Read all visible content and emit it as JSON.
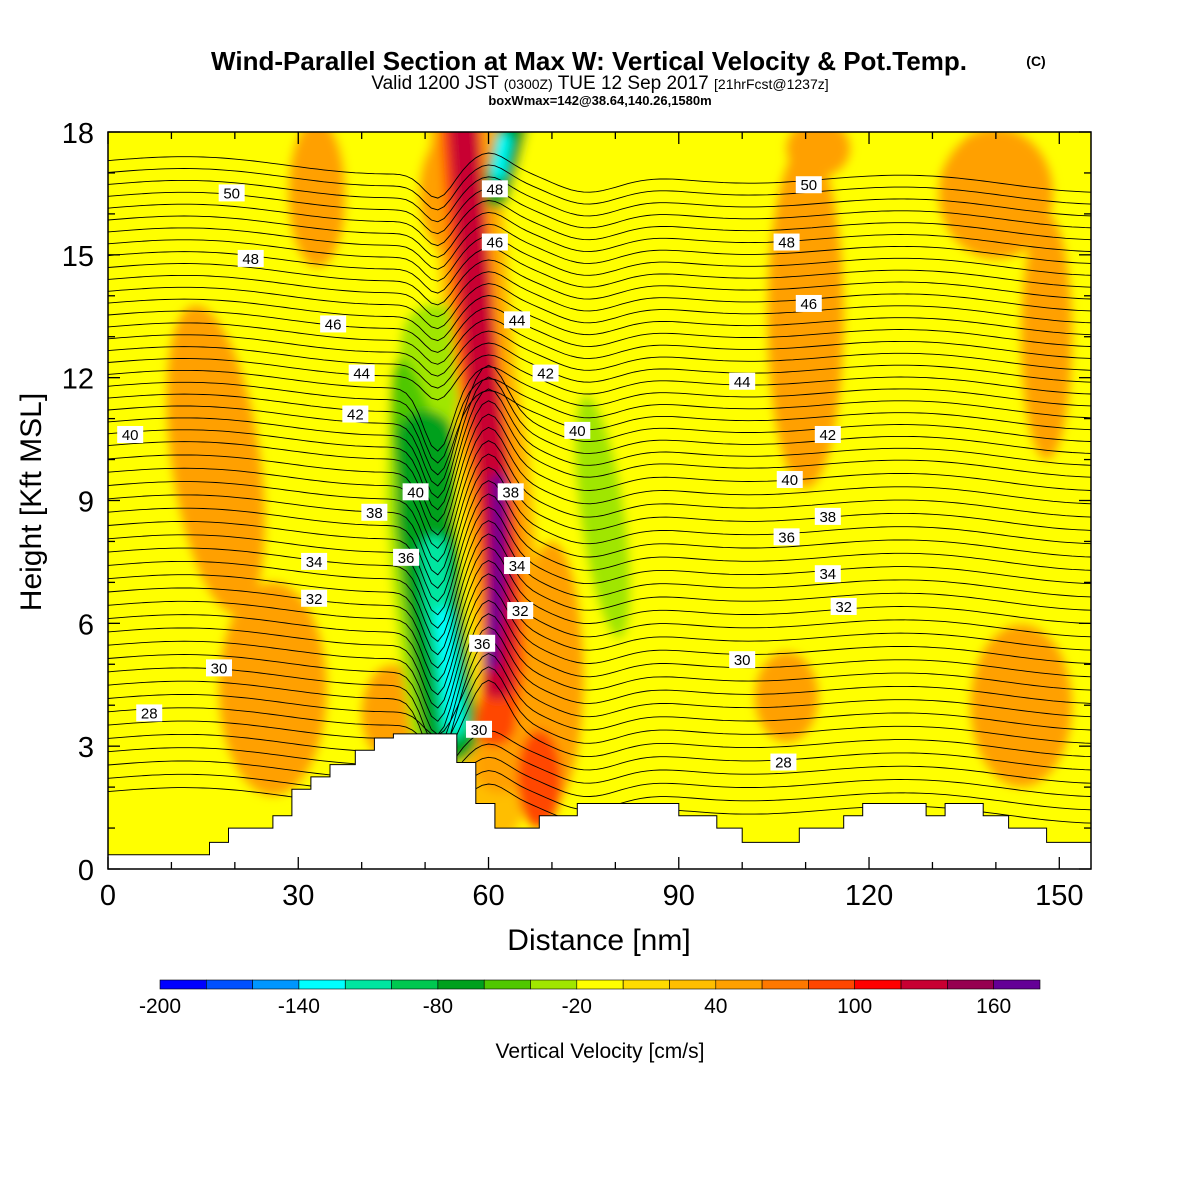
{
  "chart_data": {
    "type": "heatmap",
    "title": "Wind-Parallel Section at Max W: Vertical Velocity & Pot.Temp.",
    "title_mark": "(C)",
    "subtitle": {
      "prefix": "Valid 1200 JST",
      "utc": "(0300Z)",
      "date": "TUE 12 Sep 2017",
      "fcst": "[21hrFcst@1237z]"
    },
    "subtitle2": "boxWmax=142@38.64,140.26,1580m",
    "xlabel": "Distance [nm]",
    "ylabel": "Height [Kft MSL]",
    "xlim": [
      0,
      155
    ],
    "ylim": [
      0,
      18
    ],
    "x_ticks": [
      0,
      30,
      60,
      90,
      120,
      150
    ],
    "y_ticks": [
      0,
      3,
      6,
      9,
      12,
      15,
      18
    ],
    "grid": false,
    "colorbar": {
      "label": "Vertical Velocity [cm/s]",
      "min": -200,
      "max": 180,
      "step": 20,
      "ticks": [
        -200,
        -140,
        -80,
        -20,
        40,
        100,
        160
      ],
      "colors": [
        "#0000ff",
        "#0050ff",
        "#0096ff",
        "#00ffff",
        "#00e6a0",
        "#00c850",
        "#00a01e",
        "#50c800",
        "#a0e600",
        "#ffff00",
        "#ffdc00",
        "#ffbe00",
        "#ffa000",
        "#ff7800",
        "#ff4600",
        "#ff0000",
        "#c80032",
        "#960050",
        "#640096"
      ]
    },
    "contour_series": "Potential Temperature",
    "theta_labels": [
      {
        "x": 19.5,
        "y": 16.5,
        "text": "50"
      },
      {
        "x": 22.5,
        "y": 14.9,
        "text": "48"
      },
      {
        "x": 35.5,
        "y": 13.3,
        "text": "46"
      },
      {
        "x": 40,
        "y": 12.1,
        "text": "44"
      },
      {
        "x": 39,
        "y": 11.1,
        "text": "42"
      },
      {
        "x": 3.5,
        "y": 10.6,
        "text": "40"
      },
      {
        "x": 48.5,
        "y": 9.2,
        "text": "40"
      },
      {
        "x": 42,
        "y": 8.7,
        "text": "38"
      },
      {
        "x": 47,
        "y": 7.6,
        "text": "36"
      },
      {
        "x": 32.5,
        "y": 7.5,
        "text": "34"
      },
      {
        "x": 32.5,
        "y": 6.6,
        "text": "32"
      },
      {
        "x": 17.5,
        "y": 4.9,
        "text": "30"
      },
      {
        "x": 6.5,
        "y": 3.8,
        "text": "28"
      },
      {
        "x": 61,
        "y": 16.6,
        "text": "48"
      },
      {
        "x": 61,
        "y": 15.3,
        "text": "46"
      },
      {
        "x": 64.5,
        "y": 13.4,
        "text": "44"
      },
      {
        "x": 69,
        "y": 12.1,
        "text": "42"
      },
      {
        "x": 74,
        "y": 10.7,
        "text": "40"
      },
      {
        "x": 63.5,
        "y": 9.2,
        "text": "38"
      },
      {
        "x": 64.5,
        "y": 7.4,
        "text": "34"
      },
      {
        "x": 65,
        "y": 6.3,
        "text": "32"
      },
      {
        "x": 59,
        "y": 5.5,
        "text": "36"
      },
      {
        "x": 58.5,
        "y": 3.4,
        "text": "30"
      },
      {
        "x": 110.5,
        "y": 16.7,
        "text": "50"
      },
      {
        "x": 107,
        "y": 15.3,
        "text": "48"
      },
      {
        "x": 110.5,
        "y": 13.8,
        "text": "46"
      },
      {
        "x": 100,
        "y": 11.9,
        "text": "44"
      },
      {
        "x": 113.5,
        "y": 10.6,
        "text": "42"
      },
      {
        "x": 107.5,
        "y": 9.5,
        "text": "40"
      },
      {
        "x": 113.5,
        "y": 8.6,
        "text": "38"
      },
      {
        "x": 107,
        "y": 8.1,
        "text": "36"
      },
      {
        "x": 113.5,
        "y": 7.2,
        "text": "34"
      },
      {
        "x": 116,
        "y": 6.4,
        "text": "32"
      },
      {
        "x": 100,
        "y": 5.1,
        "text": "30"
      },
      {
        "x": 106.5,
        "y": 2.6,
        "text": "28"
      }
    ],
    "terrain": [
      [
        0,
        0.35
      ],
      [
        16,
        0.35
      ],
      [
        16,
        0.65
      ],
      [
        19,
        0.65
      ],
      [
        19,
        1.0
      ],
      [
        26,
        1.0
      ],
      [
        26,
        1.3
      ],
      [
        29,
        1.3
      ],
      [
        29,
        1.95
      ],
      [
        32,
        1.95
      ],
      [
        32,
        2.25
      ],
      [
        35,
        2.25
      ],
      [
        35,
        2.55
      ],
      [
        39,
        2.55
      ],
      [
        39,
        2.9
      ],
      [
        42,
        2.9
      ],
      [
        42,
        3.2
      ],
      [
        45,
        3.2
      ],
      [
        45,
        3.3
      ],
      [
        55,
        3.3
      ],
      [
        55,
        2.6
      ],
      [
        58,
        2.6
      ],
      [
        58,
        1.6
      ],
      [
        61,
        1.6
      ],
      [
        61,
        1.0
      ],
      [
        68,
        1.0
      ],
      [
        68,
        1.3
      ],
      [
        74,
        1.3
      ],
      [
        74,
        1.6
      ],
      [
        90,
        1.6
      ],
      [
        90,
        1.3
      ],
      [
        96,
        1.3
      ],
      [
        96,
        1.0
      ],
      [
        100,
        1.0
      ],
      [
        100,
        0.65
      ],
      [
        109,
        0.65
      ],
      [
        109,
        1.0
      ],
      [
        116,
        1.0
      ],
      [
        116,
        1.3
      ],
      [
        119,
        1.3
      ],
      [
        119,
        1.6
      ],
      [
        129,
        1.6
      ],
      [
        129,
        1.3
      ],
      [
        132,
        1.3
      ],
      [
        132,
        1.6
      ],
      [
        138,
        1.6
      ],
      [
        138,
        1.3
      ],
      [
        142,
        1.3
      ],
      [
        142,
        1.0
      ],
      [
        148,
        1.0
      ],
      [
        148,
        0.65
      ],
      [
        155,
        0.65
      ]
    ],
    "w_features": [
      {
        "x": 17,
        "y": 10.0,
        "rx": 7,
        "ry": 3.8,
        "rot": -8,
        "value": 40
      },
      {
        "x": 26,
        "y": 4.4,
        "rx": 8.5,
        "ry": 2.6,
        "rot": 0,
        "value": 40
      },
      {
        "x": 45,
        "y": 3.8,
        "rx": 5,
        "ry": 1.2,
        "rot": 0,
        "value": 40
      },
      {
        "x": 70,
        "y": 4.8,
        "rx": 5,
        "ry": 3.2,
        "rot": 0,
        "value": 40
      },
      {
        "x": 68,
        "y": 2.2,
        "rx": 3.5,
        "ry": 1.2,
        "rot": 0,
        "value": 80
      },
      {
        "x": 55,
        "y": 16.5,
        "rx": 6,
        "ry": 1.6,
        "rot": 0,
        "value": 40
      },
      {
        "x": 33,
        "y": 16.5,
        "rx": 4.5,
        "ry": 1.8,
        "rot": 0,
        "value": 40
      },
      {
        "x": 110,
        "y": 13.5,
        "rx": 6,
        "ry": 4.2,
        "rot": 0,
        "value": 40
      },
      {
        "x": 107,
        "y": 4.2,
        "rx": 5,
        "ry": 1.1,
        "rot": 0,
        "value": 40
      },
      {
        "x": 144,
        "y": 4.0,
        "rx": 8,
        "ry": 2.0,
        "rot": 0,
        "value": 40
      },
      {
        "x": 140,
        "y": 16.5,
        "rx": 9,
        "ry": 1.6,
        "rot": 0,
        "value": 40
      },
      {
        "x": 148,
        "y": 13.0,
        "rx": 4,
        "ry": 3.0,
        "rot": 0,
        "value": 40
      },
      {
        "x": 112,
        "y": 17.6,
        "rx": 5,
        "ry": 0.7,
        "rot": 0,
        "value": 40
      },
      {
        "x": 36,
        "y": 17.2,
        "rx": 4,
        "ry": 1.3,
        "rot": 0,
        "value": -20
      },
      {
        "x": 45,
        "y": 9.5,
        "rx": 4,
        "ry": 5.0,
        "rot": -5,
        "value": -20
      },
      {
        "x": 46,
        "y": 13.0,
        "rx": 3,
        "ry": 3.0,
        "rot": -5,
        "value": -20
      },
      {
        "x": 50,
        "y": 9.0,
        "rx": 4,
        "ry": 3.5,
        "rot": -10,
        "value": -60
      },
      {
        "x": 77,
        "y": 8.5,
        "rx": 5.5,
        "ry": 4.5,
        "rot": -8,
        "value": -20
      },
      {
        "x": 78,
        "y": 8.6,
        "rx": 3.5,
        "ry": 3.0,
        "rot": -8,
        "value": -40
      },
      {
        "x": 124.5,
        "y": 5.8,
        "rx": 2.8,
        "ry": 2.0,
        "rot": 0,
        "value": -20
      },
      {
        "x": 144,
        "y": 5.3,
        "rx": 5.0,
        "ry": 1.9,
        "rot": 0,
        "value": -20
      },
      {
        "x": 66,
        "y": 15.5,
        "rx": 3.5,
        "ry": 2.8,
        "rot": 0,
        "value": -20
      },
      {
        "x": 133,
        "y": 17.5,
        "rx": 1.3,
        "ry": 0.7,
        "rot": 0,
        "value": -20
      }
    ],
    "w_bands": [
      {
        "value": -20,
        "halfwidth": 7.5,
        "path": [
          [
            52,
            3.3
          ],
          [
            51,
            5.0
          ],
          [
            48,
            7.0
          ],
          [
            47,
            9.0
          ],
          [
            46.5,
            11.0
          ],
          [
            47,
            13.0
          ],
          [
            49,
            15.0
          ],
          [
            49,
            17.0
          ],
          [
            51,
            18.2
          ]
        ]
      },
      {
        "value": -40,
        "halfwidth": 5.2,
        "path": [
          [
            53,
            3.3
          ],
          [
            51.5,
            5.0
          ],
          [
            50,
            7.0
          ],
          [
            49,
            9.0
          ],
          [
            49.5,
            11.0
          ],
          [
            51.5,
            13.0
          ]
        ]
      },
      {
        "value": -80,
        "halfwidth": 4.5,
        "path": [
          [
            54,
            3.3
          ],
          [
            52.5,
            5.0
          ],
          [
            51,
            7.0
          ],
          [
            50,
            8.5
          ],
          [
            50,
            10.5
          ]
        ]
      },
      {
        "value": -120,
        "halfwidth": 2.2,
        "path": [
          [
            54.5,
            3.5
          ],
          [
            53.5,
            5.0
          ],
          [
            52,
            6.5
          ],
          [
            51.5,
            7.8
          ]
        ]
      },
      {
        "value": -140,
        "halfwidth": 1.2,
        "path": [
          [
            54.6,
            3.6
          ],
          [
            53.7,
            5.0
          ],
          [
            52.8,
            6.2
          ]
        ]
      },
      {
        "value": -20,
        "halfwidth": 4.0,
        "path": [
          [
            60,
            16.0
          ],
          [
            61.5,
            17.0
          ],
          [
            63,
            18.2
          ]
        ]
      },
      {
        "value": -80,
        "halfwidth": 2.3,
        "path": [
          [
            61,
            16.5
          ],
          [
            62.5,
            17.3
          ],
          [
            64,
            18.2
          ]
        ]
      },
      {
        "value": -140,
        "halfwidth": 1.0,
        "path": [
          [
            61.5,
            17.0
          ],
          [
            62.5,
            17.8
          ]
        ]
      },
      {
        "value": 20,
        "halfwidth": 5.5,
        "path": [
          [
            60,
            1.5
          ],
          [
            62,
            2.8
          ],
          [
            64,
            4.2
          ],
          [
            63,
            6.0
          ],
          [
            62,
            8.0
          ],
          [
            61,
            10.0
          ],
          [
            59,
            12.0
          ],
          [
            58,
            14.0
          ],
          [
            57,
            16.0
          ],
          [
            56,
            18.2
          ]
        ]
      },
      {
        "value": 40,
        "halfwidth": 4.2,
        "path": [
          [
            62,
            2.5
          ],
          [
            63.5,
            4.0
          ],
          [
            63,
            6.0
          ],
          [
            62,
            8.0
          ],
          [
            61,
            10.0
          ],
          [
            59,
            12.0
          ],
          [
            58,
            14.0
          ],
          [
            57,
            16.0
          ],
          [
            56,
            18.2
          ]
        ]
      },
      {
        "value": 80,
        "halfwidth": 3.2,
        "path": [
          [
            61,
            3.5
          ],
          [
            62.5,
            5.0
          ],
          [
            62,
            7.0
          ],
          [
            61,
            9.0
          ],
          [
            59.5,
            11.0
          ],
          [
            58,
            13.0
          ],
          [
            57,
            15.0
          ],
          [
            56,
            17.0
          ],
          [
            55.5,
            18.2
          ]
        ]
      },
      {
        "value": 120,
        "halfwidth": 2.3,
        "path": [
          [
            61.5,
            4.5
          ],
          [
            62,
            6.0
          ],
          [
            61.5,
            8.0
          ],
          [
            60.5,
            10.0
          ],
          [
            59,
            12.0
          ],
          [
            58,
            14.0
          ],
          [
            57,
            16.0
          ],
          [
            56,
            18.2
          ]
        ]
      },
      {
        "value": 160,
        "halfwidth": 1.0,
        "path": [
          [
            60.5,
            5.0
          ],
          [
            61.5,
            7.0
          ],
          [
            61.5,
            9.5
          ]
        ]
      }
    ]
  }
}
